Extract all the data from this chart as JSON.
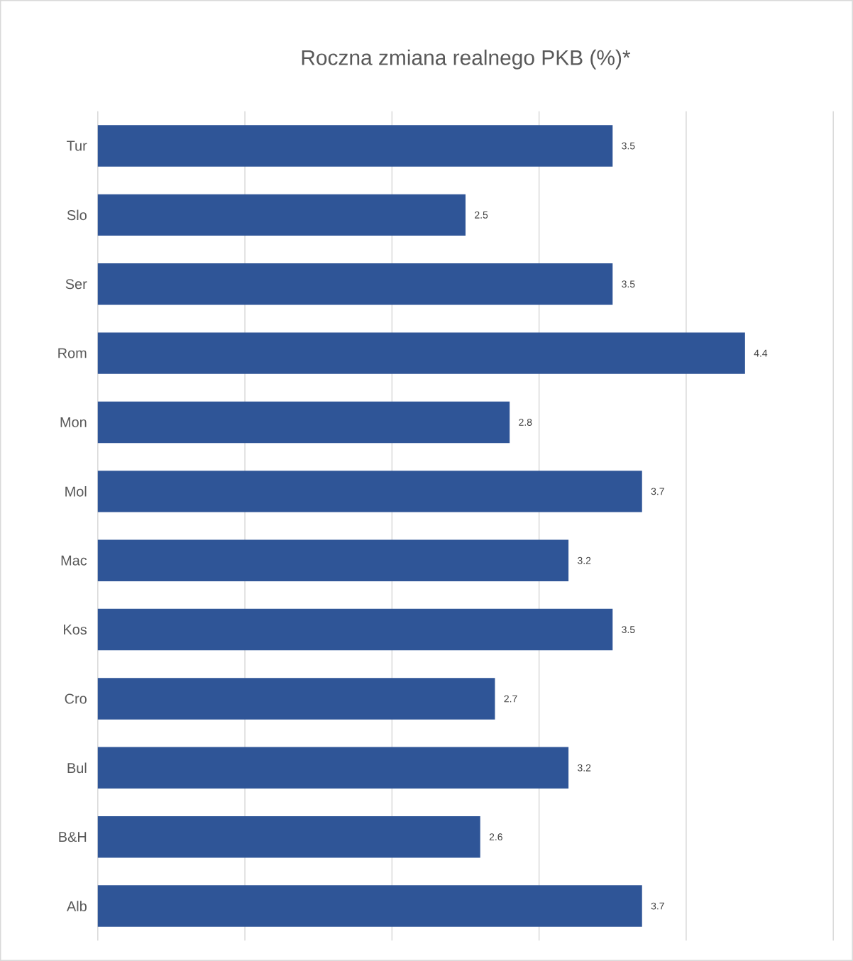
{
  "chart_data": {
    "type": "bar",
    "orientation": "horizontal",
    "title": "Roczna zmiana realnego PKB (%)*",
    "categories": [
      "Tur",
      "Slo",
      "Ser",
      "Rom",
      "Mon",
      "Mol",
      "Mac",
      "Kos",
      "Cro",
      "Bul",
      "B&H",
      "Alb"
    ],
    "values": [
      3.5,
      2.5,
      3.5,
      4.4,
      2.8,
      3.7,
      3.2,
      3.5,
      2.7,
      3.2,
      2.6,
      3.7
    ],
    "color": "#2f5597",
    "data_labels": true,
    "grid": "x",
    "tick_labels": "y",
    "xlim": [
      0,
      5
    ],
    "xticks": [
      {
        "value": 0,
        "label": null
      },
      {
        "value": 1,
        "label": null
      },
      {
        "value": 2,
        "label": null
      },
      {
        "value": 3,
        "label": null
      },
      {
        "value": 4,
        "label": null
      },
      {
        "value": 5,
        "label": null
      }
    ]
  }
}
